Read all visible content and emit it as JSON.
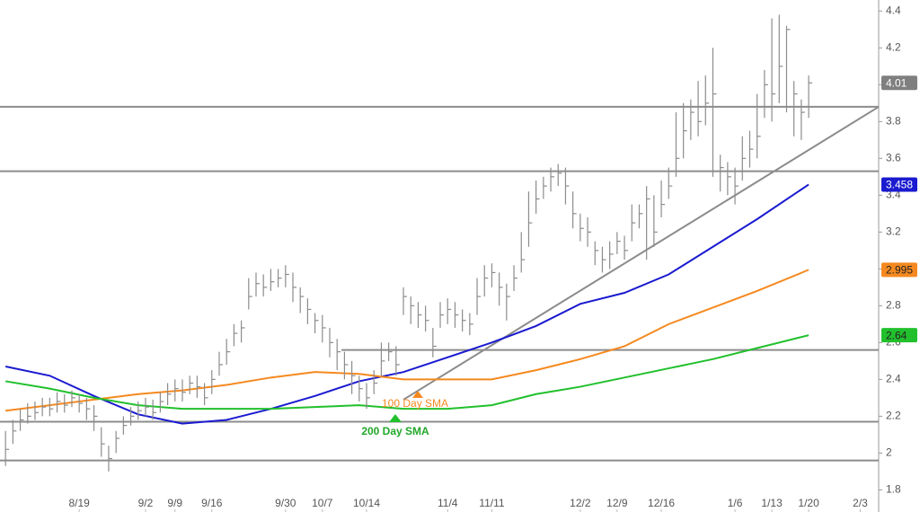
{
  "chart_data": {
    "type": "ohlc",
    "xlim": [
      -0.75,
      118.5
    ],
    "ylim": [
      1.68,
      4.46
    ],
    "yticks": [
      1.8,
      2,
      2.2,
      2.4,
      2.6,
      2.8,
      3,
      3.2,
      3.4,
      3.6,
      3.8,
      4,
      4.2,
      4.4
    ],
    "xticks": [
      {
        "value": 10,
        "label": "8/19"
      },
      {
        "value": 19,
        "label": "9/2"
      },
      {
        "value": 23,
        "label": "9/9"
      },
      {
        "value": 28,
        "label": "9/16"
      },
      {
        "value": 38,
        "label": "9/30"
      },
      {
        "value": 43,
        "label": "10/7"
      },
      {
        "value": 49,
        "label": "10/14"
      },
      {
        "value": 60,
        "label": "11/4"
      },
      {
        "value": 66,
        "label": "11/11"
      },
      {
        "value": 78,
        "label": "12/2"
      },
      {
        "value": 83,
        "label": "12/9"
      },
      {
        "value": 89,
        "label": "12/16"
      },
      {
        "value": 99,
        "label": "1/6"
      },
      {
        "value": 104,
        "label": "1/13"
      },
      {
        "value": 109,
        "label": "1/20"
      },
      {
        "value": 116,
        "label": "2/3"
      }
    ],
    "bars": {
      "color": "#8c8c8c",
      "x": [
        0,
        1,
        2,
        3,
        4,
        5,
        6,
        7,
        8,
        9,
        10,
        11,
        12,
        13,
        14,
        15,
        16,
        17,
        18,
        19,
        20,
        21,
        22,
        23,
        24,
        25,
        26,
        27,
        28,
        29,
        30,
        31,
        32,
        33,
        34,
        35,
        36,
        37,
        38,
        39,
        40,
        41,
        42,
        43,
        44,
        45,
        46,
        47,
        48,
        49,
        50,
        51,
        52,
        53,
        54,
        55,
        56,
        57,
        58,
        59,
        60,
        61,
        62,
        63,
        64,
        65,
        66,
        67,
        68,
        69,
        70,
        71,
        72,
        73,
        74,
        75,
        76,
        77,
        78,
        79,
        80,
        81,
        82,
        83,
        84,
        85,
        86,
        87,
        88,
        89,
        90,
        91,
        92,
        93,
        94,
        95,
        96,
        97,
        98,
        99,
        100,
        101,
        102,
        103,
        104,
        105,
        106,
        107,
        108,
        109
      ],
      "high": [
        2.12,
        2.18,
        2.24,
        2.27,
        2.28,
        2.3,
        2.3,
        2.33,
        2.32,
        2.34,
        2.32,
        2.3,
        2.26,
        2.14,
        2.04,
        2.12,
        2.2,
        2.25,
        2.28,
        2.3,
        2.29,
        2.33,
        2.38,
        2.4,
        2.4,
        2.42,
        2.42,
        2.38,
        2.45,
        2.55,
        2.62,
        2.7,
        2.72,
        2.95,
        2.98,
        2.97,
        3.0,
        3.0,
        3.02,
        2.98,
        2.9,
        2.84,
        2.76,
        2.75,
        2.68,
        2.62,
        2.55,
        2.5,
        2.42,
        2.38,
        2.45,
        2.6,
        2.6,
        2.58,
        2.9,
        2.85,
        2.82,
        2.8,
        2.68,
        2.82,
        2.84,
        2.82,
        2.78,
        2.76,
        2.95,
        3.02,
        3.03,
        2.98,
        2.92,
        3.02,
        3.2,
        3.42,
        3.48,
        3.5,
        3.55,
        3.57,
        3.55,
        3.42,
        3.3,
        3.28,
        3.15,
        3.12,
        3.15,
        3.2,
        3.18,
        3.35,
        3.35,
        3.45,
        3.4,
        3.48,
        3.55,
        3.85,
        3.9,
        3.92,
        4.02,
        4.05,
        4.2,
        3.62,
        3.58,
        3.55,
        3.72,
        3.75,
        3.95,
        4.08,
        4.36,
        4.38,
        4.32,
        4.02,
        3.92,
        4.05
      ],
      "low": [
        1.93,
        2.05,
        2.12,
        2.16,
        2.18,
        2.2,
        2.2,
        2.22,
        2.22,
        2.25,
        2.22,
        2.18,
        2.12,
        1.98,
        1.9,
        2.0,
        2.1,
        2.15,
        2.18,
        2.2,
        2.18,
        2.22,
        2.26,
        2.28,
        2.28,
        2.32,
        2.3,
        2.26,
        2.32,
        2.42,
        2.48,
        2.58,
        2.6,
        2.78,
        2.85,
        2.85,
        2.88,
        2.9,
        2.9,
        2.82,
        2.76,
        2.7,
        2.65,
        2.6,
        2.52,
        2.45,
        2.4,
        2.32,
        2.28,
        2.24,
        2.32,
        2.42,
        2.5,
        2.42,
        2.75,
        2.7,
        2.68,
        2.66,
        2.52,
        2.68,
        2.7,
        2.68,
        2.66,
        2.64,
        2.75,
        2.85,
        2.9,
        2.8,
        2.72,
        2.88,
        2.98,
        3.12,
        3.3,
        3.38,
        3.42,
        3.45,
        3.35,
        3.22,
        3.15,
        3.12,
        3.02,
        2.98,
        3.0,
        3.08,
        3.05,
        3.15,
        3.22,
        3.05,
        3.12,
        3.28,
        3.38,
        3.5,
        3.6,
        3.7,
        3.72,
        3.78,
        3.5,
        3.42,
        3.4,
        3.35,
        3.48,
        3.55,
        3.6,
        3.82,
        3.8,
        3.9,
        3.85,
        3.72,
        3.7,
        3.82
      ],
      "close": [
        2.02,
        2.12,
        2.18,
        2.2,
        2.22,
        2.25,
        2.24,
        2.28,
        2.26,
        2.3,
        2.27,
        2.24,
        2.2,
        2.05,
        1.97,
        2.08,
        2.15,
        2.2,
        2.23,
        2.25,
        2.22,
        2.28,
        2.32,
        2.35,
        2.33,
        2.38,
        2.36,
        2.3,
        2.4,
        2.48,
        2.55,
        2.65,
        2.68,
        2.85,
        2.92,
        2.9,
        2.93,
        2.95,
        2.97,
        2.9,
        2.85,
        2.78,
        2.72,
        2.68,
        2.6,
        2.55,
        2.48,
        2.42,
        2.35,
        2.3,
        2.38,
        2.5,
        2.55,
        2.48,
        2.85,
        2.8,
        2.75,
        2.72,
        2.58,
        2.75,
        2.78,
        2.75,
        2.72,
        2.7,
        2.85,
        2.95,
        2.98,
        2.9,
        2.85,
        2.95,
        3.05,
        3.25,
        3.38,
        3.45,
        3.5,
        3.52,
        3.45,
        3.3,
        3.22,
        3.2,
        3.1,
        3.05,
        3.08,
        3.15,
        3.1,
        3.25,
        3.3,
        3.38,
        3.2,
        3.35,
        3.45,
        3.6,
        3.75,
        3.85,
        3.8,
        3.9,
        3.95,
        3.55,
        3.5,
        3.45,
        3.6,
        3.65,
        3.72,
        4.0,
        3.95,
        4.1,
        4.3,
        3.95,
        3.85,
        4.01
      ]
    },
    "series": [
      {
        "color": "#1a1ad0",
        "x": [
          0,
          6,
          12,
          18,
          24,
          30,
          36,
          42,
          48,
          54,
          60,
          66,
          72,
          78,
          84,
          90,
          96,
          102,
          109
        ],
        "values": [
          2.47,
          2.42,
          2.31,
          2.21,
          2.16,
          2.18,
          2.24,
          2.31,
          2.39,
          2.44,
          2.52,
          2.6,
          2.69,
          2.81,
          2.87,
          2.97,
          3.12,
          3.27,
          3.458
        ]
      },
      {
        "name": "100 Day SMA",
        "color": "#f5891f",
        "x": [
          0,
          6,
          12,
          18,
          24,
          30,
          36,
          42,
          48,
          54,
          60,
          66,
          72,
          78,
          84,
          90,
          96,
          102,
          109
        ],
        "values": [
          2.23,
          2.26,
          2.29,
          2.32,
          2.34,
          2.37,
          2.41,
          2.44,
          2.43,
          2.4,
          2.4,
          2.4,
          2.45,
          2.51,
          2.58,
          2.7,
          2.79,
          2.88,
          2.995
        ]
      },
      {
        "name": "200 Day SMA",
        "color": "#21c02c",
        "x": [
          0,
          6,
          12,
          18,
          24,
          30,
          36,
          42,
          48,
          54,
          60,
          66,
          72,
          78,
          84,
          90,
          96,
          102,
          109
        ],
        "values": [
          2.39,
          2.35,
          2.3,
          2.26,
          2.24,
          2.24,
          2.24,
          2.25,
          2.26,
          2.24,
          2.24,
          2.26,
          2.32,
          2.36,
          2.41,
          2.46,
          2.51,
          2.57,
          2.64
        ]
      }
    ],
    "levels": [
      3.88,
      3.53,
      2.17,
      1.96
    ],
    "support": {
      "x": [
        45.6,
        118.5
      ],
      "values": [
        2.56,
        2.56
      ]
    },
    "trendline": {
      "x": [
        54,
        118.5
      ],
      "values": [
        2.29,
        3.88
      ]
    },
    "line_color": "#8c8c8c"
  }
}
